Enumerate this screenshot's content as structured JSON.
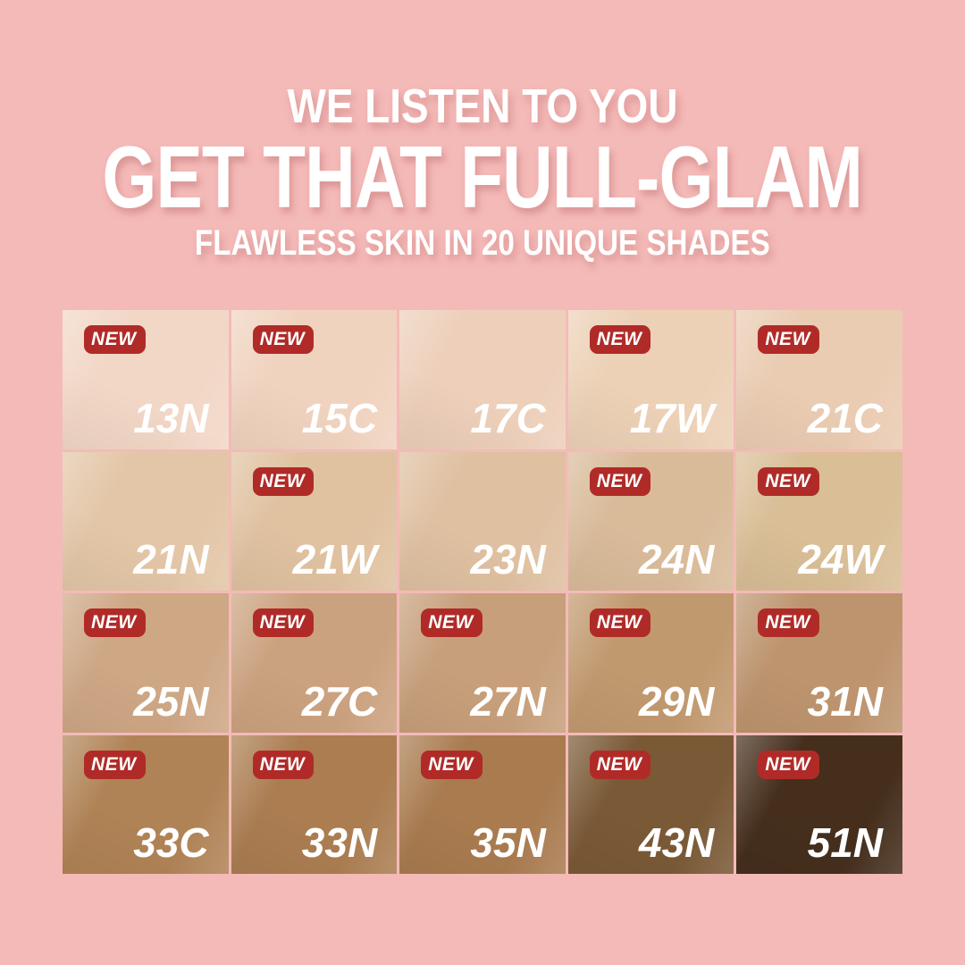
{
  "colors": {
    "background": "#F4BAB8",
    "badge_red": "#B02B28",
    "text_white": "#FFFFFF"
  },
  "header": {
    "line1": "WE LISTEN TO YOU",
    "line2": "GET THAT FULL-GLAM",
    "line3": "FLAWLESS SKIN IN 20 UNIQUE SHADES"
  },
  "badge_label": "NEW",
  "grid": {
    "rows": 4,
    "cols": 5,
    "shades": [
      {
        "code": "13N",
        "color": "#F2D7C6",
        "new": true
      },
      {
        "code": "15C",
        "color": "#F0D3BF",
        "new": true
      },
      {
        "code": "17C",
        "color": "#EDCFBA",
        "new": false
      },
      {
        "code": "17W",
        "color": "#ECD1B6",
        "new": true
      },
      {
        "code": "21C",
        "color": "#EACCB2",
        "new": true
      },
      {
        "code": "21N",
        "color": "#E3C6A7",
        "new": false
      },
      {
        "code": "21W",
        "color": "#E0C2A1",
        "new": true
      },
      {
        "code": "23N",
        "color": "#DFC0A1",
        "new": false
      },
      {
        "code": "24N",
        "color": "#D9BB9A",
        "new": true
      },
      {
        "code": "24W",
        "color": "#D9BE96",
        "new": true
      },
      {
        "code": "25N",
        "color": "#CEA785",
        "new": true
      },
      {
        "code": "27C",
        "color": "#CBA27F",
        "new": true
      },
      {
        "code": "27N",
        "color": "#C79F7B",
        "new": true
      },
      {
        "code": "29N",
        "color": "#C1996F",
        "new": true
      },
      {
        "code": "31N",
        "color": "#BD946E",
        "new": true
      },
      {
        "code": "33C",
        "color": "#B08356",
        "new": true
      },
      {
        "code": "33N",
        "color": "#AB7D51",
        "new": true
      },
      {
        "code": "35N",
        "color": "#A97B4F",
        "new": true
      },
      {
        "code": "43N",
        "color": "#7A5936",
        "new": true
      },
      {
        "code": "51N",
        "color": "#452E1C",
        "new": true
      }
    ]
  }
}
